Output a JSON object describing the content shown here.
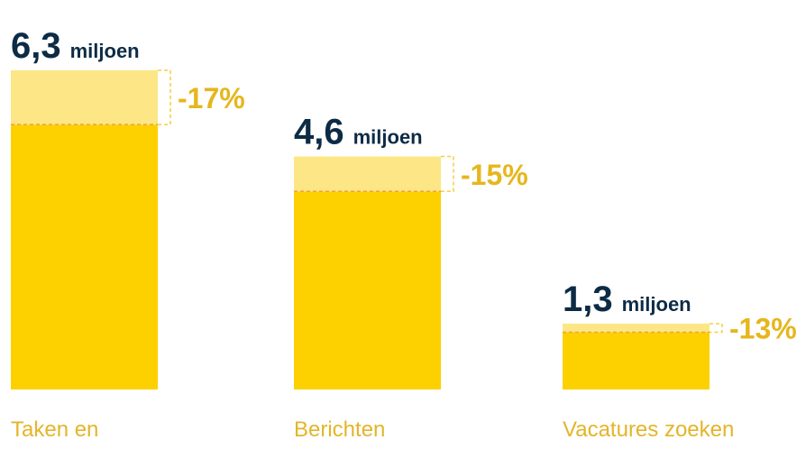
{
  "chart_data": {
    "type": "bar",
    "categories": [
      "Taken en",
      "Berichten",
      "Vacatures zoeken"
    ],
    "values": [
      6.3,
      4.6,
      1.3
    ],
    "value_labels": [
      "6,3",
      "4,6",
      "1,3"
    ],
    "unit": "miljoen",
    "change": [
      -17,
      -15,
      -13
    ],
    "change_labels": [
      "-17%",
      "-15%",
      "-13%"
    ],
    "color": "#fdd000",
    "change_color": "#fde685",
    "ylim": [
      0,
      6.3
    ]
  }
}
